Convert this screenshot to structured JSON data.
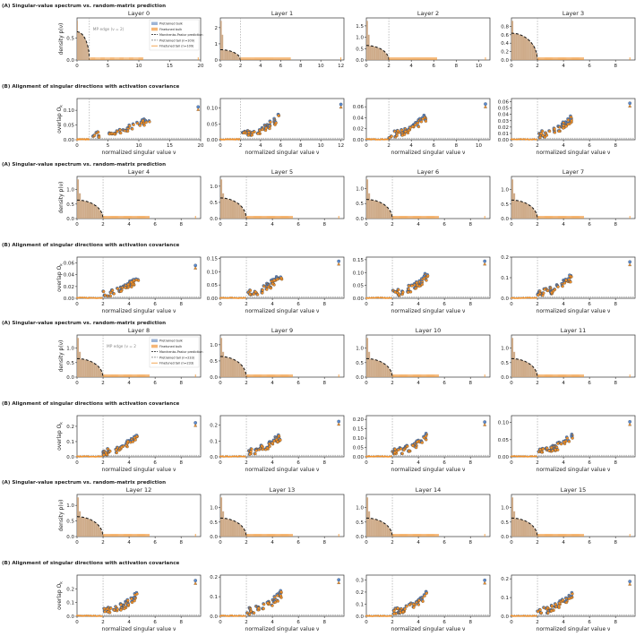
{
  "section_titles": {
    "A": "(A) Singular-value spectrum vs. random-matrix prediction",
    "B": "(B) Alignment of singular directions with activation covariance"
  },
  "axis_labels": {
    "density_ylabel": "density  p(ν)",
    "overlap_ylabel": "overlap  O",
    "overlap_ylabel_sub": "k",
    "xlabel": "normalized singular value  ν"
  },
  "legend": [
    "Pretrained bulk",
    "Finetuned bulk",
    "Marchenko-Pastur prediction",
    "Pretrained tail (n=109)",
    "Finetuned tail (n=109)"
  ],
  "legend_row3": [
    "Pretrained bulk",
    "Finetuned bulk",
    "Marchenko-Pastur prediction",
    "Pretrained tail (n=233)",
    "Finetuned tail (n=233)"
  ],
  "mp_edge_label": "MP edge (ν = 2)",
  "mp_edge_label_row3": "MP edge (ν = 2",
  "colors": {
    "pretrained": "#5b8bd0",
    "finetuned": "#f0902a",
    "bulk_mix": "#c9a27c",
    "mp_curve": "#111111",
    "edge_line": "#999999"
  },
  "chart_data": {
    "type": "panel-grid",
    "layers": [
      {
        "layer": "Layer 0",
        "xlim": [
          0,
          20
        ],
        "xticks": [
          0,
          5,
          10,
          15,
          20
        ],
        "ylim": [
          0,
          0.95
        ],
        "yticks": [
          0,
          0.5
        ],
        "tail_max": 19.6,
        "overlap_ylim": [
          0,
          0.14
        ],
        "overlap_yticks": [
          0,
          0.05,
          0.1
        ],
        "overlap_tail_max": 19.6,
        "overlap_peak": 0.12
      },
      {
        "layer": "Layer 1",
        "xlim": [
          0,
          12.3
        ],
        "xticks": [
          0,
          2,
          4,
          6,
          8,
          10,
          12
        ],
        "ylim": [
          0,
          2.6
        ],
        "yticks": [
          0,
          1,
          2
        ],
        "tail_max": 12.0,
        "overlap_ylim": [
          0,
          0.13
        ],
        "overlap_yticks": [
          0,
          0.05,
          0.1
        ],
        "overlap_tail_max": 12.0,
        "overlap_peak": 0.12
      },
      {
        "layer": "Layer 2",
        "xlim": [
          0,
          11
        ],
        "xticks": [
          0,
          2,
          4,
          6,
          8,
          10
        ],
        "ylim": [
          0,
          1.85
        ],
        "yticks": [
          0,
          0.5,
          1.0,
          1.5
        ],
        "tail_max": 10.6,
        "overlap_ylim": [
          0,
          0.075
        ],
        "overlap_yticks": [
          0,
          0.02,
          0.04,
          0.06
        ],
        "overlap_tail_max": 10.6,
        "overlap_peak": 0.07
      },
      {
        "layer": "Layer 3",
        "xlim": [
          0,
          9.5
        ],
        "xticks": [
          0,
          2,
          4,
          6,
          8
        ],
        "ylim": [
          0,
          1.0
        ],
        "yticks": [
          0,
          0.2,
          0.4,
          0.6,
          0.8
        ],
        "tail_max": 9.1,
        "overlap_ylim": [
          0,
          0.065
        ],
        "overlap_yticks": [
          0,
          0.01,
          0.02,
          0.03,
          0.04,
          0.05,
          0.06
        ],
        "overlap_tail_max": 9.1,
        "overlap_peak": 0.062
      },
      {
        "layer": "Layer 4",
        "xlim": [
          0,
          9.5
        ],
        "xticks": [
          0,
          2,
          4,
          6,
          8
        ],
        "ylim": [
          0,
          1.45
        ],
        "yticks": [
          0,
          0.5,
          1.0
        ],
        "tail_max": 9.1,
        "overlap_ylim": [
          0,
          0.07
        ],
        "overlap_yticks": [
          0,
          0.02,
          0.04,
          0.06
        ],
        "overlap_tail_max": 9.1,
        "overlap_peak": 0.06
      },
      {
        "layer": "Layer 5",
        "xlim": [
          0,
          9.5
        ],
        "xticks": [
          0,
          2,
          4,
          6,
          8
        ],
        "ylim": [
          0,
          1.3
        ],
        "yticks": [
          0,
          0.5,
          1.0
        ],
        "tail_max": 9.1,
        "overlap_ylim": [
          0,
          0.155
        ],
        "overlap_yticks": [
          0,
          0.05,
          0.1,
          0.15
        ],
        "overlap_tail_max": 9.1,
        "overlap_peak": 0.15
      },
      {
        "layer": "Layer 6",
        "xlim": [
          0,
          9.5
        ],
        "xticks": [
          0,
          2,
          4,
          6,
          8
        ],
        "ylim": [
          0,
          1.4
        ],
        "yticks": [
          0,
          0.5,
          1.0
        ],
        "tail_max": 9.1,
        "overlap_ylim": [
          0,
          0.16
        ],
        "overlap_yticks": [
          0,
          0.05,
          0.1,
          0.15
        ],
        "overlap_tail_max": 9.1,
        "overlap_peak": 0.155
      },
      {
        "layer": "Layer 7",
        "xlim": [
          0,
          9.5
        ],
        "xticks": [
          0,
          2,
          4,
          6,
          8
        ],
        "ylim": [
          0,
          1.45
        ],
        "yticks": [
          0,
          0.5,
          1.0
        ],
        "tail_max": 9.1,
        "overlap_ylim": [
          0,
          0.2
        ],
        "overlap_yticks": [
          0,
          0.1,
          0.2
        ],
        "overlap_tail_max": 9.1,
        "overlap_peak": 0.19
      },
      {
        "layer": "Layer 8",
        "xlim": [
          0,
          9.5
        ],
        "xticks": [
          0,
          2,
          4,
          6,
          8
        ],
        "ylim": [
          0,
          1.45
        ],
        "yticks": [
          0,
          0.5,
          1.0
        ],
        "tail_max": 9.1,
        "overlap_ylim": [
          0,
          0.27
        ],
        "overlap_yticks": [
          0,
          0.1,
          0.2
        ],
        "overlap_tail_max": 9.1,
        "overlap_peak": 0.24
      },
      {
        "layer": "Layer 9",
        "xlim": [
          0,
          9.5
        ],
        "xticks": [
          0,
          2,
          4,
          6,
          8
        ],
        "ylim": [
          0,
          1.3
        ],
        "yticks": [
          0,
          0.5,
          1.0
        ],
        "tail_max": 9.1,
        "overlap_ylim": [
          0,
          0.26
        ],
        "overlap_yticks": [
          0,
          0.1,
          0.2
        ],
        "overlap_tail_max": 9.1,
        "overlap_peak": 0.24
      },
      {
        "layer": "Layer 10",
        "xlim": [
          0,
          9.5
        ],
        "xticks": [
          0,
          2,
          4,
          6,
          8
        ],
        "ylim": [
          0,
          1.45
        ],
        "yticks": [
          0,
          0.5,
          1.0
        ],
        "tail_max": 9.1,
        "overlap_ylim": [
          0,
          0.22
        ],
        "overlap_yticks": [
          0,
          0.05,
          0.1,
          0.15,
          0.2
        ],
        "overlap_tail_max": 9.1,
        "overlap_peak": 0.2
      },
      {
        "layer": "Layer 11",
        "xlim": [
          0,
          9.5
        ],
        "xticks": [
          0,
          2,
          4,
          6,
          8
        ],
        "ylim": [
          0,
          1.45
        ],
        "yticks": [
          0,
          0.5,
          1.0
        ],
        "tail_max": 9.1,
        "overlap_ylim": [
          0,
          0.12
        ],
        "overlap_yticks": [
          0,
          0.05,
          0.1
        ],
        "overlap_tail_max": 9.1,
        "overlap_peak": 0.11
      },
      {
        "layer": "Layer 12",
        "xlim": [
          0,
          9.5
        ],
        "xticks": [
          0,
          2,
          4,
          6,
          8
        ],
        "ylim": [
          0,
          1.35
        ],
        "yticks": [
          0,
          0.5,
          1.0
        ],
        "tail_max": 9.1,
        "overlap_ylim": [
          0,
          0.3
        ],
        "overlap_yticks": [
          0,
          0.1,
          0.2
        ],
        "overlap_tail_max": 9.1,
        "overlap_peak": 0.28
      },
      {
        "layer": "Layer 13",
        "xlim": [
          0,
          9.5
        ],
        "xticks": [
          0,
          2,
          4,
          6,
          8
        ],
        "ylim": [
          0,
          1.45
        ],
        "yticks": [
          0,
          0.5,
          1.0
        ],
        "tail_max": 9.1,
        "overlap_ylim": [
          0,
          0.21
        ],
        "overlap_yticks": [
          0,
          0.1,
          0.2
        ],
        "overlap_tail_max": 9.1,
        "overlap_peak": 0.2
      },
      {
        "layer": "Layer 14",
        "xlim": [
          0,
          9.5
        ],
        "xticks": [
          0,
          2,
          4,
          6,
          8
        ],
        "ylim": [
          0,
          1.45
        ],
        "yticks": [
          0,
          0.5,
          1.0
        ],
        "tail_max": 9.1,
        "overlap_ylim": [
          0,
          0.34
        ],
        "overlap_yticks": [
          0,
          0.1,
          0.2,
          0.3
        ],
        "overlap_tail_max": 9.1,
        "overlap_peak": 0.32
      },
      {
        "layer": "Layer 15",
        "xlim": [
          0,
          9.5
        ],
        "xticks": [
          0,
          2,
          4,
          6,
          8
        ],
        "ylim": [
          0,
          1.45
        ],
        "yticks": [
          0,
          0.5,
          1.0
        ],
        "tail_max": 9.1,
        "overlap_ylim": [
          0,
          0.22
        ],
        "overlap_yticks": [
          0,
          0.1,
          0.2
        ],
        "overlap_tail_max": 9.1,
        "overlap_peak": 0.2
      }
    ],
    "mp_edge": 2
  }
}
